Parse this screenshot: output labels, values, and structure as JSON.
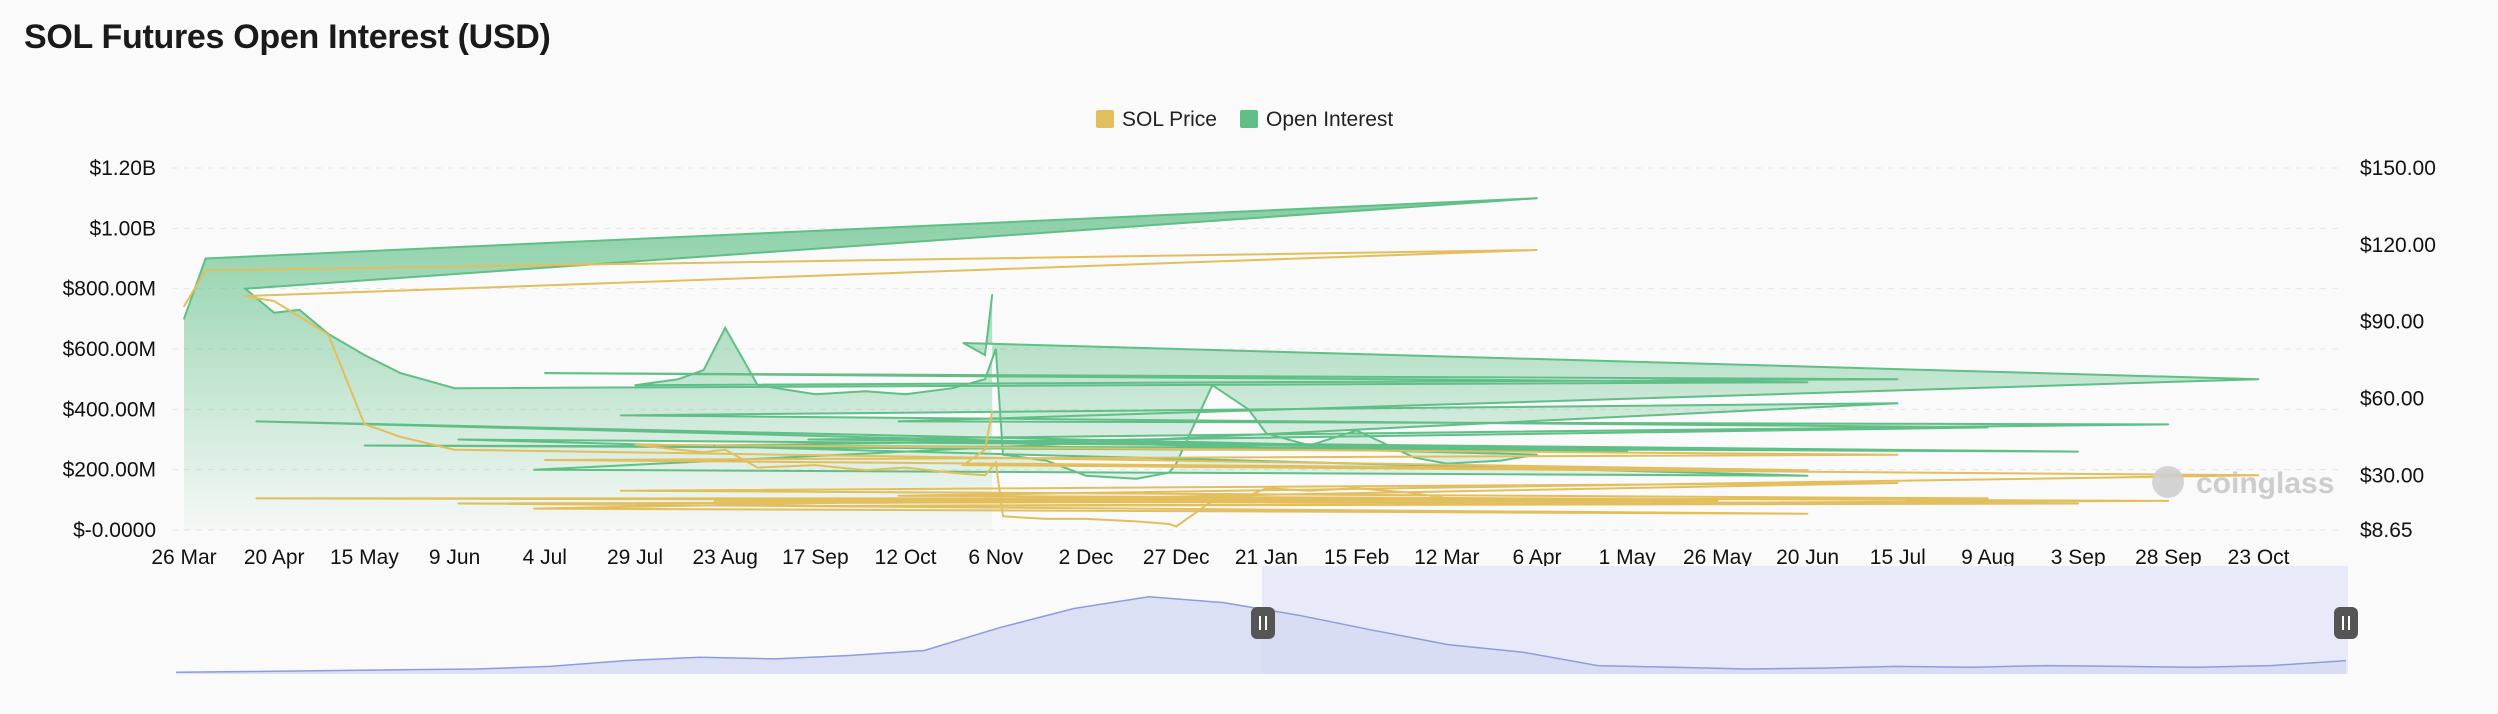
{
  "title": "SOL Futures Open Interest (USD)",
  "watermark": "coinglass",
  "colors": {
    "price": "#e2be5c",
    "oi": "#5fbf86",
    "navigator_fill": "#d5daf3",
    "navigator_line": "#8e9be0",
    "navigator_selection": "#e8eaf9"
  },
  "chart_data": {
    "type": "area",
    "title": "SOL Futures Open Interest (USD)",
    "legend": {
      "position": "top-center",
      "items": [
        "SOL Price",
        "Open Interest"
      ]
    },
    "x_tick_labels": [
      "26 Mar",
      "20 Apr",
      "15 May",
      "9 Jun",
      "4 Jul",
      "29 Jul",
      "23 Aug",
      "17 Sep",
      "12 Oct",
      "6 Nov",
      "2 Dec",
      "27 Dec",
      "21 Jan",
      "15 Feb",
      "12 Mar",
      "6 Apr",
      "1 May",
      "26 May",
      "20 Jun",
      "15 Jul",
      "9 Aug",
      "3 Sep",
      "28 Sep",
      "23 Oct"
    ],
    "y_left_tick_labels": [
      "$-0.0000",
      "$200.00M",
      "$400.00M",
      "$600.00M",
      "$800.00M",
      "$1.00B",
      "$1.20B"
    ],
    "y_right_tick_labels": [
      "$8.65",
      "$30.00",
      "$60.00",
      "$90.00",
      "$120.00",
      "$150.00"
    ],
    "y_left_range": [
      0,
      1200000000
    ],
    "y_right_range": [
      8.65,
      150
    ],
    "grid": "horizontal dashed",
    "series": [
      {
        "name": "Open Interest",
        "axis": "left",
        "style": "area",
        "x": [
          "26 Mar",
          "1 Apr",
          "6 Apr",
          "12 Apr",
          "20 Apr",
          "27 Apr",
          "5 May",
          "15 May",
          "25 May",
          "9 Jun",
          "20 Jun",
          "4 Jul",
          "15 Jul",
          "29 Jul",
          "10 Aug",
          "17 Aug",
          "23 Aug",
          "1 Sep",
          "17 Sep",
          "1 Oct",
          "12 Oct",
          "25 Oct",
          "3 Nov",
          "6 Nov",
          "8 Nov",
          "20 Nov",
          "2 Dec",
          "15 Dec",
          "24 Dec",
          "27 Dec",
          "5 Jan",
          "15 Jan",
          "21 Jan",
          "1 Feb",
          "15 Feb",
          "1 Mar",
          "12 Mar",
          "25 Mar",
          "6 Apr",
          "15 Apr",
          "1 May",
          "15 May",
          "26 May",
          "10 Jun",
          "20 Jun",
          "1 Jul",
          "15 Jul",
          "25 Jul",
          "9 Aug",
          "20 Aug",
          "3 Sep",
          "15 Sep",
          "28 Sep",
          "10 Oct",
          "23 Oct",
          "28 Oct",
          "3 Nov",
          "5 Nov"
        ],
        "values": [
          700000000,
          900000000,
          1100000000,
          800000000,
          720000000,
          730000000,
          650000000,
          580000000,
          520000000,
          470000000,
          490000000,
          520000000,
          500000000,
          480000000,
          500000000,
          530000000,
          670000000,
          480000000,
          450000000,
          460000000,
          450000000,
          470000000,
          500000000,
          600000000,
          250000000,
          230000000,
          180000000,
          170000000,
          190000000,
          220000000,
          480000000,
          400000000,
          320000000,
          280000000,
          330000000,
          240000000,
          220000000,
          230000000,
          250000000,
          360000000,
          260000000,
          280000000,
          270000000,
          300000000,
          180000000,
          200000000,
          420000000,
          380000000,
          340000000,
          280000000,
          260000000,
          300000000,
          350000000,
          360000000,
          500000000,
          620000000,
          580000000,
          780000000
        ]
      },
      {
        "name": "SOL Price",
        "axis": "right",
        "style": "line",
        "x": [
          "26 Mar",
          "1 Apr",
          "6 Apr",
          "12 Apr",
          "20 Apr",
          "27 Apr",
          "5 May",
          "15 May",
          "25 May",
          "9 Jun",
          "20 Jun",
          "4 Jul",
          "15 Jul",
          "29 Jul",
          "10 Aug",
          "17 Aug",
          "23 Aug",
          "1 Sep",
          "17 Sep",
          "1 Oct",
          "12 Oct",
          "25 Oct",
          "3 Nov",
          "6 Nov",
          "8 Nov",
          "20 Nov",
          "2 Dec",
          "15 Dec",
          "24 Dec",
          "27 Dec",
          "5 Jan",
          "15 Jan",
          "21 Jan",
          "1 Feb",
          "15 Feb",
          "1 Mar",
          "12 Mar",
          "25 Mar",
          "6 Apr",
          "15 Apr",
          "1 May",
          "15 May",
          "26 May",
          "10 Jun",
          "20 Jun",
          "1 Jul",
          "15 Jul",
          "25 Jul",
          "9 Aug",
          "20 Aug",
          "3 Sep",
          "15 Sep",
          "28 Sep",
          "10 Oct",
          "23 Oct",
          "28 Oct",
          "3 Nov",
          "5 Nov"
        ],
        "values": [
          96,
          110,
          118,
          100,
          98,
          92,
          85,
          50,
          45,
          40,
          32,
          36,
          38,
          42,
          40,
          39,
          40,
          33,
          34,
          32,
          33,
          31,
          30,
          35,
          14,
          13,
          13,
          12,
          11,
          10,
          20,
          22,
          25,
          24,
          25,
          23,
          21,
          20,
          21,
          21,
          20,
          21,
          20,
          19,
          15,
          17,
          27,
          24,
          21,
          20,
          19,
          18,
          20,
          22,
          30,
          34,
          40,
          55
        ]
      }
    ]
  }
}
